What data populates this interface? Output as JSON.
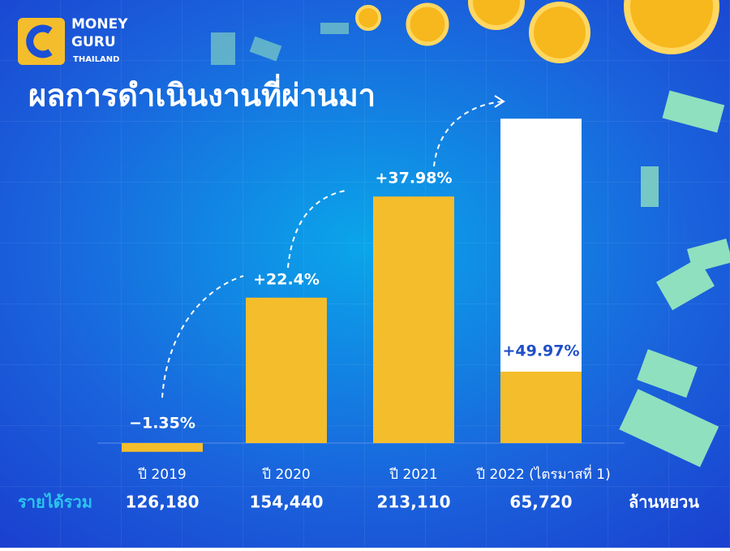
{
  "brand": {
    "line1": "MONEY",
    "line2": "GURU",
    "line3": "THAILAND"
  },
  "chart_data": {
    "type": "bar",
    "title": "ผลการดำเนินงานที่ผ่านมา",
    "categories": [
      "ปี 2019",
      "ปี 2020",
      "ปี 2021",
      "ปี 2022 (ไตรมาสที่ 1)"
    ],
    "series": [
      {
        "values": [
          -1.35,
          22.4,
          37.98,
          49.97
        ],
        "value_labels": [
          "−1.35%",
          "+22.4%",
          "+37.98%",
          "+49.97%"
        ],
        "colors": [
          "#f4bd2c",
          "#f4bd2c",
          "#f4bd2c",
          "#ffffff"
        ]
      }
    ],
    "revenue": {
      "label": "รายได้รวม",
      "values": [
        126180,
        154440,
        213110,
        65720
      ],
      "value_labels": [
        "126,180",
        "154,440",
        "213,110",
        "65,720"
      ],
      "unit": "ล้านหยวน"
    }
  }
}
